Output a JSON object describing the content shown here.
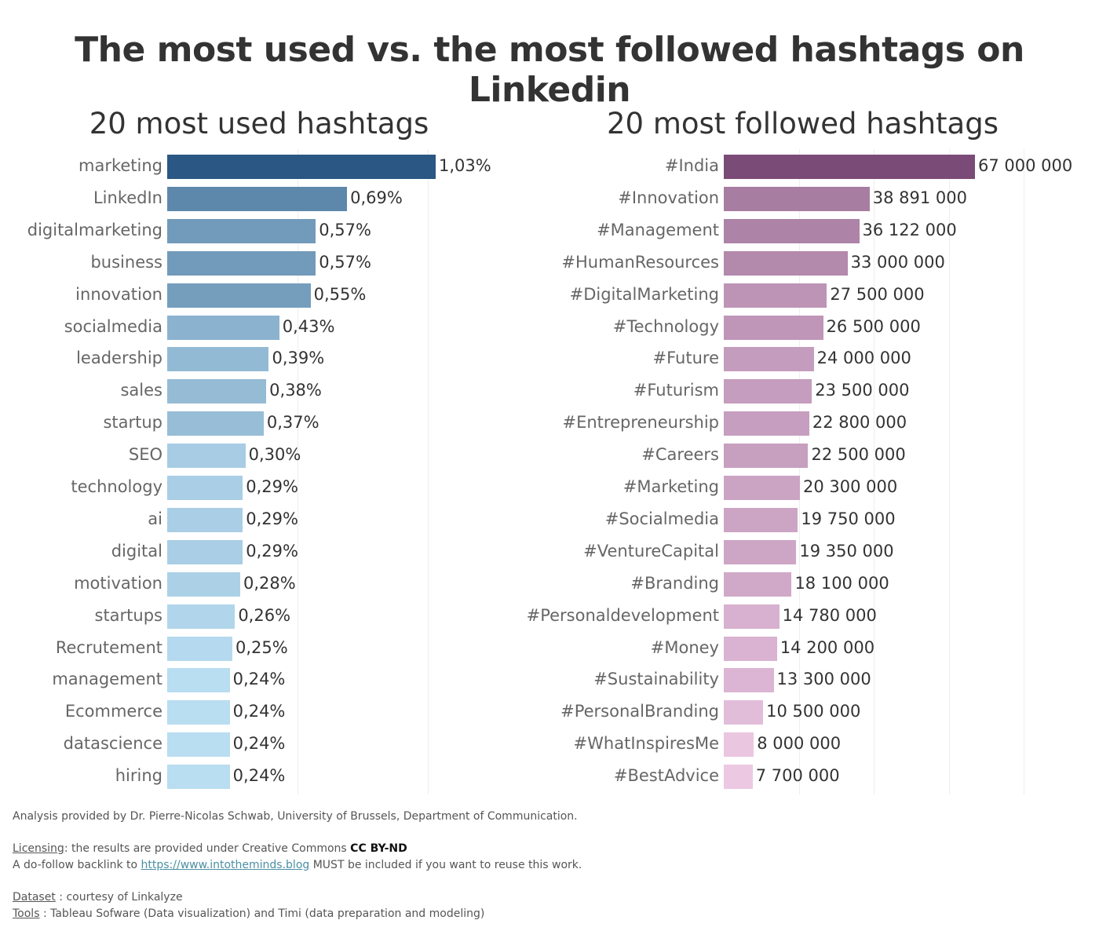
{
  "title": "The most used vs. the most followed hashtags on Linkedin",
  "chart_data": [
    {
      "type": "bar",
      "orientation": "horizontal",
      "title": "20 most used hashtags",
      "categories": [
        "marketing",
        "LinkedIn",
        "digitalmarketing",
        "business",
        "innovation",
        "socialmedia",
        "leadership",
        "sales",
        "startup",
        "SEO",
        "technology",
        "ai",
        "digital",
        "motivation",
        "startups",
        "Recrutement",
        "management",
        "Ecommerce",
        "datascience",
        "hiring"
      ],
      "values": [
        1.03,
        0.69,
        0.57,
        0.57,
        0.55,
        0.43,
        0.39,
        0.38,
        0.37,
        0.3,
        0.29,
        0.29,
        0.29,
        0.28,
        0.26,
        0.25,
        0.24,
        0.24,
        0.24,
        0.24
      ],
      "value_labels": [
        "1,03%",
        "0,69%",
        "0,57%",
        "0,57%",
        "0,55%",
        "0,43%",
        "0,39%",
        "0,38%",
        "0,37%",
        "0,30%",
        "0,29%",
        "0,29%",
        "0,29%",
        "0,28%",
        "0,26%",
        "0,25%",
        "0,24%",
        "0,24%",
        "0,24%",
        "0,24%"
      ],
      "unit": "%",
      "xlim": [
        0,
        1.3
      ],
      "gridlines": [
        0.5,
        1.0
      ],
      "grid": true,
      "color_range": [
        "#b9ddf1",
        "#2a5783"
      ]
    },
    {
      "type": "bar",
      "orientation": "horizontal",
      "title": "20 most followed hashtags",
      "categories": [
        "#India",
        "#Innovation",
        "#Management",
        "#HumanResources",
        "#DigitalMarketing",
        "#Technology",
        "#Future",
        "#Futurism",
        "#Entrepreneurship",
        "#Careers",
        "#Marketing",
        "#Socialmedia",
        "#VentureCapital",
        "#Branding",
        "#Personaldevelopment",
        "#Money",
        "#Sustainability",
        "#PersonalBranding",
        "#WhatInspiresMe",
        "#BestAdvice"
      ],
      "values": [
        67000000,
        38891000,
        36122000,
        33000000,
        27500000,
        26500000,
        24000000,
        23500000,
        22800000,
        22500000,
        20300000,
        19750000,
        19350000,
        18100000,
        14780000,
        14200000,
        13300000,
        10500000,
        8000000,
        7700000
      ],
      "value_labels": [
        "67 000 000",
        "38 891 000",
        "36 122 000",
        "33 000 000",
        "27 500 000",
        "26 500 000",
        "24 000 000",
        "23 500 000",
        "22 800 000",
        "22 500 000",
        "20 300 000",
        "19 750 000",
        "19 350 000",
        "18 100 000",
        "14 780 000",
        "14 200 000",
        "13 300 000",
        "10 500 000",
        "8 000 000",
        "7 700 000"
      ],
      "xlim": [
        0,
        97000000
      ],
      "gridlines": [
        20000000,
        40000000,
        60000000,
        80000000
      ],
      "grid": true,
      "color_range": [
        "#ecc8e3",
        "#7b4b77"
      ]
    }
  ],
  "footer": {
    "analysis": "Analysis provided by Dr. Pierre-Nicolas Schwab, University of Brussels, Department of Communication.",
    "licensing_label": "Licensing",
    "licensing_text": ": the results are provided under Creative Commons ",
    "license": "CC BY-ND",
    "backlink_pre": "A do-follow backlink to ",
    "backlink_url": "https://www.intotheminds.blog",
    "backlink_post": " MUST be included if you want to reuse this work.",
    "dataset_label": "Dataset",
    "dataset_text": " : courtesy of Linkalyze",
    "tools_label": "Tools",
    "tools_text": " : Tableau Sofware (Data visualization) and Timi (data preparation and modeling)"
  }
}
